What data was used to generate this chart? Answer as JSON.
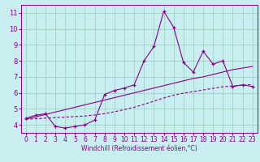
{
  "xlabel": "Windchill (Refroidissement éolien,°C)",
  "x": [
    0,
    1,
    2,
    3,
    4,
    5,
    6,
    7,
    8,
    9,
    10,
    11,
    12,
    13,
    14,
    15,
    16,
    17,
    18,
    19,
    20,
    21,
    22,
    23
  ],
  "y_data": [
    4.4,
    4.6,
    4.7,
    3.9,
    3.8,
    3.9,
    4.0,
    4.3,
    5.9,
    6.15,
    6.3,
    6.5,
    8.0,
    8.9,
    11.1,
    10.1,
    7.9,
    7.3,
    8.6,
    7.8,
    8.0,
    6.4,
    6.5,
    6.4
  ],
  "y_linear": [
    4.35,
    4.5,
    4.65,
    4.8,
    4.95,
    5.1,
    5.25,
    5.4,
    5.55,
    5.7,
    5.85,
    6.0,
    6.15,
    6.3,
    6.45,
    6.6,
    6.75,
    6.9,
    7.0,
    7.15,
    7.3,
    7.45,
    7.55,
    7.65
  ],
  "y_smooth": [
    4.35,
    4.38,
    4.42,
    4.45,
    4.48,
    4.52,
    4.55,
    4.62,
    4.7,
    4.82,
    4.95,
    5.1,
    5.28,
    5.48,
    5.68,
    5.85,
    5.98,
    6.08,
    6.18,
    6.28,
    6.38,
    6.43,
    6.48,
    6.52
  ],
  "color": "#880088",
  "bg_color": "#c8eef0",
  "grid_color": "#99ccbb",
  "ylim": [
    3.5,
    11.5
  ],
  "xlim": [
    -0.5,
    23.5
  ],
  "yticks": [
    4,
    5,
    6,
    7,
    8,
    9,
    10,
    11
  ],
  "xticks": [
    0,
    1,
    2,
    3,
    4,
    5,
    6,
    7,
    8,
    9,
    10,
    11,
    12,
    13,
    14,
    15,
    16,
    17,
    18,
    19,
    20,
    21,
    22,
    23
  ],
  "xlabel_fontsize": 5.5,
  "tick_fontsize": 5.5,
  "linewidth": 0.8,
  "marker_size": 3.5
}
